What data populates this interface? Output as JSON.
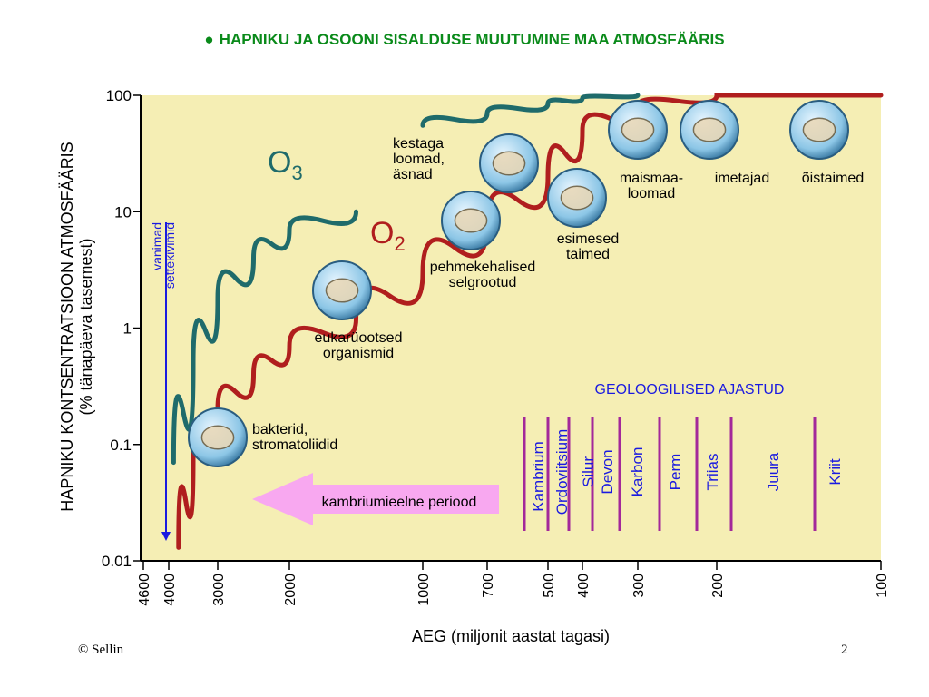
{
  "title": "HAPNIKU JA OSOONI SISALDUSE MUUTUMINE MAA ATMOSFÄÄRIS",
  "footer": {
    "copyright": "© Sellin",
    "page_number": "2"
  },
  "colors": {
    "o2_curve": "#b01e1e",
    "o3_curve": "#1f6b6b",
    "plot_bg": "#f5eeb4",
    "period_line": "#a3289a",
    "period_text": "#1a1ae0",
    "title": "#0a8a1a",
    "arrow": "#f8a8f0"
  },
  "chart_data": {
    "type": "line",
    "title": "",
    "xlabel": "AEG (miljonit aastat tagasi)",
    "ylabel": "HAPNIKU KONTSENTRATSIOON ATMOSFÄÄRIS",
    "ylabel2": "(% tänapäeva tasemest)",
    "y_scale": "log",
    "ylim": [
      0.01,
      100
    ],
    "y_ticks": [
      "100",
      "10",
      "1",
      "0.1",
      "0.01"
    ],
    "x_ticks": [
      "4600",
      "4000",
      "3000",
      "2000",
      "1000",
      "700",
      "500",
      "400",
      "300",
      "200",
      "100"
    ],
    "series": [
      {
        "name": "O2",
        "name_sub": "2",
        "name_base": "O",
        "x": [
          3800,
          3500,
          3000,
          2500,
          2000,
          1500,
          1000,
          700,
          500,
          400,
          300,
          200,
          100
        ],
        "y": [
          0.013,
          0.08,
          0.2,
          0.4,
          0.7,
          1.2,
          3,
          8,
          20,
          50,
          80,
          100,
          100
        ]
      },
      {
        "name": "O3",
        "name_sub": "3",
        "name_base": "O",
        "x": [
          3900,
          3500,
          3000,
          2500,
          2000,
          1500
        ],
        "y": [
          0.07,
          0.5,
          1.8,
          4,
          7,
          10
        ]
      },
      {
        "name": "O3-late",
        "x": [
          1000,
          700,
          500,
          400,
          300
        ],
        "y": [
          55,
          70,
          85,
          95,
          100
        ]
      }
    ],
    "annotations": [
      {
        "text": "bakterid,\nstromatoliidid",
        "x": 3900,
        "y": 0.1
      },
      {
        "text": "eukarüootsed\norganismid",
        "x": 2000,
        "y": 1
      },
      {
        "text": "pehmekehalised\nselgrootud",
        "x": 1000,
        "y": 3
      },
      {
        "text": "kestaga\nloomad,\näsnad",
        "x": 700,
        "y": 15
      },
      {
        "text": "esimesed\ntaimed",
        "x": 450,
        "y": 4
      },
      {
        "text": "maismaa-\nloomad",
        "x": 320,
        "y": 40
      },
      {
        "text": "imetajad",
        "x": 200,
        "y": 40
      },
      {
        "text": "õistaimed",
        "x": 100,
        "y": 40
      }
    ],
    "sediment_label": "vanimad\nsettekivimid",
    "precambrian_label": "kambriumieelne periood",
    "periods_heading": "GEOLOOGILISED AJASTUD",
    "periods": [
      "Kambrium",
      "Ordoviitsium",
      "Silur",
      "Devon",
      "Karbon",
      "Perm",
      "Triias",
      "Juura",
      "Kriit"
    ]
  }
}
